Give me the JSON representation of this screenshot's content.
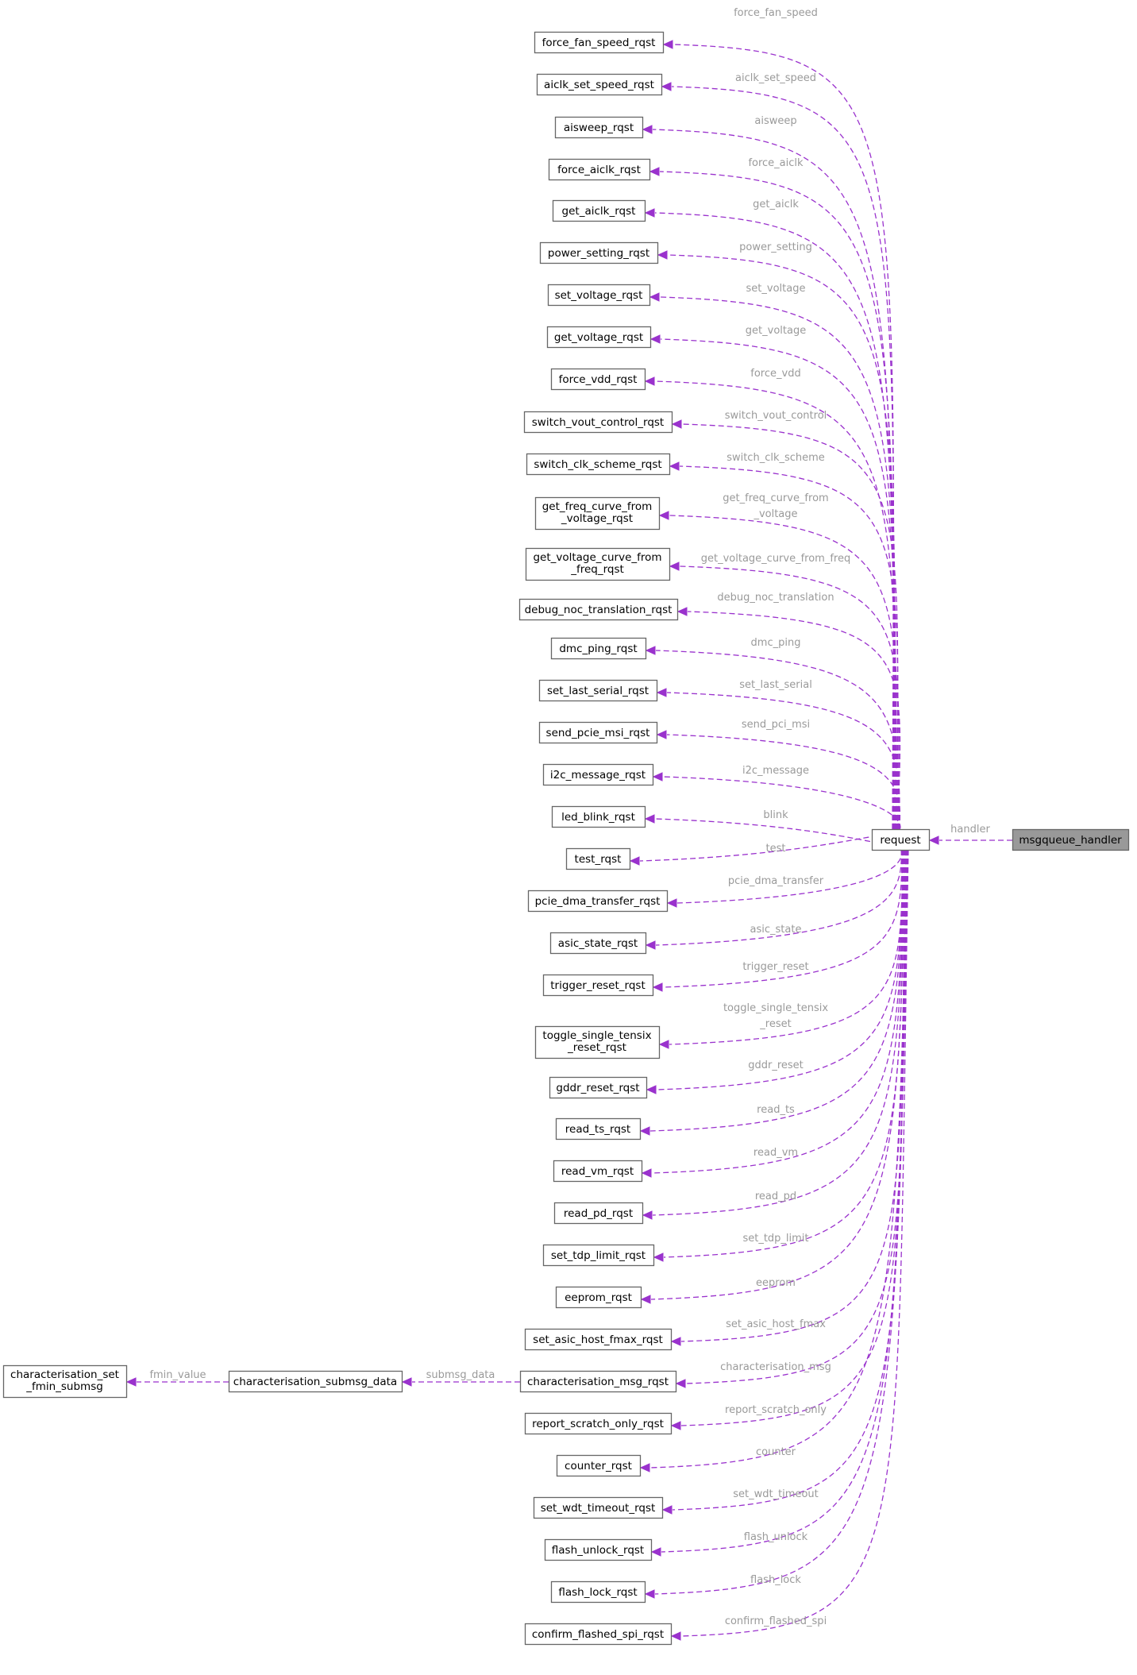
{
  "diagram": {
    "root": "msgqueue_handler",
    "nodes": [
      {
        "id": "msgqueue_handler",
        "label": "msgqueue_handler",
        "highlighted": true
      },
      {
        "id": "request",
        "label": "request"
      },
      {
        "id": "force_fan_speed_rqst",
        "label": "force_fan_speed_rqst"
      },
      {
        "id": "aiclk_set_speed_rqst",
        "label": "aiclk_set_speed_rqst"
      },
      {
        "id": "aisweep_rqst",
        "label": "aisweep_rqst"
      },
      {
        "id": "force_aiclk_rqst",
        "label": "force_aiclk_rqst"
      },
      {
        "id": "get_aiclk_rqst",
        "label": "get_aiclk_rqst"
      },
      {
        "id": "power_setting_rqst",
        "label": "power_setting_rqst"
      },
      {
        "id": "set_voltage_rqst",
        "label": "set_voltage_rqst"
      },
      {
        "id": "get_voltage_rqst",
        "label": "get_voltage_rqst"
      },
      {
        "id": "force_vdd_rqst",
        "label": "force_vdd_rqst"
      },
      {
        "id": "switch_vout_control_rqst",
        "label": "switch_vout_control_rqst"
      },
      {
        "id": "switch_clk_scheme_rqst",
        "label": "switch_clk_scheme_rqst"
      },
      {
        "id": "get_freq_curve_from_voltage_rqst",
        "label": "get_freq_curve_from\n_voltage_rqst"
      },
      {
        "id": "get_voltage_curve_from_freq_rqst",
        "label": "get_voltage_curve_from\n_freq_rqst"
      },
      {
        "id": "debug_noc_translation_rqst",
        "label": "debug_noc_translation_rqst"
      },
      {
        "id": "dmc_ping_rqst",
        "label": "dmc_ping_rqst"
      },
      {
        "id": "set_last_serial_rqst",
        "label": "set_last_serial_rqst"
      },
      {
        "id": "send_pcie_msi_rqst",
        "label": "send_pcie_msi_rqst"
      },
      {
        "id": "i2c_message_rqst",
        "label": "i2c_message_rqst"
      },
      {
        "id": "led_blink_rqst",
        "label": "led_blink_rqst"
      },
      {
        "id": "test_rqst",
        "label": "test_rqst"
      },
      {
        "id": "pcie_dma_transfer_rqst",
        "label": "pcie_dma_transfer_rqst"
      },
      {
        "id": "asic_state_rqst",
        "label": "asic_state_rqst"
      },
      {
        "id": "trigger_reset_rqst",
        "label": "trigger_reset_rqst"
      },
      {
        "id": "toggle_single_tensix_reset_rqst",
        "label": "toggle_single_tensix\n_reset_rqst"
      },
      {
        "id": "gddr_reset_rqst",
        "label": "gddr_reset_rqst"
      },
      {
        "id": "read_ts_rqst",
        "label": "read_ts_rqst"
      },
      {
        "id": "read_vm_rqst",
        "label": "read_vm_rqst"
      },
      {
        "id": "read_pd_rqst",
        "label": "read_pd_rqst"
      },
      {
        "id": "set_tdp_limit_rqst",
        "label": "set_tdp_limit_rqst"
      },
      {
        "id": "eeprom_rqst",
        "label": "eeprom_rqst"
      },
      {
        "id": "set_asic_host_fmax_rqst",
        "label": "set_asic_host_fmax_rqst"
      },
      {
        "id": "characterisation_msg_rqst",
        "label": "characterisation_msg_rqst"
      },
      {
        "id": "report_scratch_only_rqst",
        "label": "report_scratch_only_rqst"
      },
      {
        "id": "counter_rqst",
        "label": "counter_rqst"
      },
      {
        "id": "set_wdt_timeout_rqst",
        "label": "set_wdt_timeout_rqst"
      },
      {
        "id": "flash_unlock_rqst",
        "label": "flash_unlock_rqst"
      },
      {
        "id": "flash_lock_rqst",
        "label": "flash_lock_rqst"
      },
      {
        "id": "confirm_flashed_spi_rqst",
        "label": "confirm_flashed_spi_rqst"
      },
      {
        "id": "characterisation_submsg_data",
        "label": "characterisation_submsg_data"
      },
      {
        "id": "characterisation_set_fmin_submsg",
        "label": "characterisation_set\n_fmin_submsg"
      }
    ],
    "edges": [
      {
        "from": "msgqueue_handler",
        "to": "request",
        "label": "handler"
      },
      {
        "from": "request",
        "to": "force_fan_speed_rqst",
        "label": "force_fan_speed"
      },
      {
        "from": "request",
        "to": "aiclk_set_speed_rqst",
        "label": "aiclk_set_speed"
      },
      {
        "from": "request",
        "to": "aisweep_rqst",
        "label": "aisweep"
      },
      {
        "from": "request",
        "to": "force_aiclk_rqst",
        "label": "force_aiclk"
      },
      {
        "from": "request",
        "to": "get_aiclk_rqst",
        "label": "get_aiclk"
      },
      {
        "from": "request",
        "to": "power_setting_rqst",
        "label": "power_setting"
      },
      {
        "from": "request",
        "to": "set_voltage_rqst",
        "label": "set_voltage"
      },
      {
        "from": "request",
        "to": "get_voltage_rqst",
        "label": "get_voltage"
      },
      {
        "from": "request",
        "to": "force_vdd_rqst",
        "label": "force_vdd"
      },
      {
        "from": "request",
        "to": "switch_vout_control_rqst",
        "label": "switch_vout_control"
      },
      {
        "from": "request",
        "to": "switch_clk_scheme_rqst",
        "label": "switch_clk_scheme"
      },
      {
        "from": "request",
        "to": "get_freq_curve_from_voltage_rqst",
        "label": "get_freq_curve_from\n_voltage"
      },
      {
        "from": "request",
        "to": "get_voltage_curve_from_freq_rqst",
        "label": "get_voltage_curve_from_freq"
      },
      {
        "from": "request",
        "to": "debug_noc_translation_rqst",
        "label": "debug_noc_translation"
      },
      {
        "from": "request",
        "to": "dmc_ping_rqst",
        "label": "dmc_ping"
      },
      {
        "from": "request",
        "to": "set_last_serial_rqst",
        "label": "set_last_serial"
      },
      {
        "from": "request",
        "to": "send_pcie_msi_rqst",
        "label": "send_pci_msi"
      },
      {
        "from": "request",
        "to": "i2c_message_rqst",
        "label": "i2c_message"
      },
      {
        "from": "request",
        "to": "led_blink_rqst",
        "label": "blink"
      },
      {
        "from": "request",
        "to": "test_rqst",
        "label": "test"
      },
      {
        "from": "request",
        "to": "pcie_dma_transfer_rqst",
        "label": "pcie_dma_transfer"
      },
      {
        "from": "request",
        "to": "asic_state_rqst",
        "label": "asic_state"
      },
      {
        "from": "request",
        "to": "trigger_reset_rqst",
        "label": "trigger_reset"
      },
      {
        "from": "request",
        "to": "toggle_single_tensix_reset_rqst",
        "label": "toggle_single_tensix\n_reset"
      },
      {
        "from": "request",
        "to": "gddr_reset_rqst",
        "label": "gddr_reset"
      },
      {
        "from": "request",
        "to": "read_ts_rqst",
        "label": "read_ts"
      },
      {
        "from": "request",
        "to": "read_vm_rqst",
        "label": "read_vm"
      },
      {
        "from": "request",
        "to": "read_pd_rqst",
        "label": "read_pd"
      },
      {
        "from": "request",
        "to": "set_tdp_limit_rqst",
        "label": "set_tdp_limit"
      },
      {
        "from": "request",
        "to": "eeprom_rqst",
        "label": "eeprom"
      },
      {
        "from": "request",
        "to": "set_asic_host_fmax_rqst",
        "label": "set_asic_host_fmax"
      },
      {
        "from": "request",
        "to": "characterisation_msg_rqst",
        "label": "characterisation_msg"
      },
      {
        "from": "request",
        "to": "report_scratch_only_rqst",
        "label": "report_scratch_only"
      },
      {
        "from": "request",
        "to": "counter_rqst",
        "label": "counter"
      },
      {
        "from": "request",
        "to": "set_wdt_timeout_rqst",
        "label": "set_wdt_timeout"
      },
      {
        "from": "request",
        "to": "flash_unlock_rqst",
        "label": "flash_unlock"
      },
      {
        "from": "request",
        "to": "flash_lock_rqst",
        "label": "flash_lock"
      },
      {
        "from": "request",
        "to": "confirm_flashed_spi_rqst",
        "label": "confirm_flashed_spi"
      },
      {
        "from": "characterisation_msg_rqst",
        "to": "characterisation_submsg_data",
        "label": "submsg_data"
      },
      {
        "from": "characterisation_submsg_data",
        "to": "characterisation_set_fmin_submsg",
        "label": "fmin_value"
      }
    ],
    "colors": {
      "edge": "#9a32cd",
      "edge_label": "#9a9a9a",
      "node_border": "#666666",
      "highlight_fill": "#999999"
    }
  }
}
